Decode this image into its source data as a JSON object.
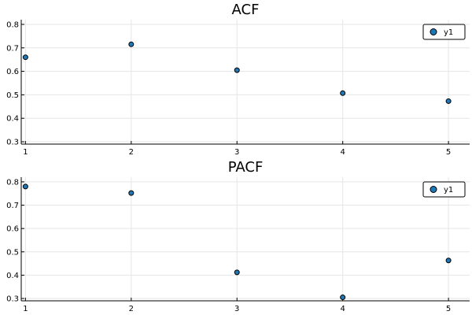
{
  "colors": {
    "marker_fill": "#1f77b4",
    "marker_stroke": "#000000",
    "grid": "#e6e6e6",
    "axis": "#000000",
    "background": "#ffffff"
  },
  "chart_data": [
    {
      "type": "scatter",
      "title": "ACF",
      "xlabel": "",
      "ylabel": "",
      "x": [
        1,
        2,
        3,
        4,
        5
      ],
      "series": [
        {
          "name": "y1",
          "values": [
            0.66,
            0.715,
            0.605,
            0.507,
            0.473
          ]
        }
      ],
      "xlim": [
        0.96,
        5.2
      ],
      "ylim": [
        0.29,
        0.82
      ],
      "xticks": [
        1,
        2,
        3,
        4,
        5
      ],
      "yticks": [
        0.3,
        0.4,
        0.5,
        0.6,
        0.7,
        0.8
      ],
      "grid": true,
      "legend": "top-right"
    },
    {
      "type": "scatter",
      "title": "PACF",
      "xlabel": "",
      "ylabel": "",
      "x": [
        1,
        2,
        3,
        4,
        5
      ],
      "series": [
        {
          "name": "y1",
          "values": [
            0.78,
            0.752,
            0.412,
            0.305,
            0.463
          ]
        }
      ],
      "xlim": [
        0.96,
        5.2
      ],
      "ylim": [
        0.29,
        0.82
      ],
      "xticks": [
        1,
        2,
        3,
        4,
        5
      ],
      "yticks": [
        0.3,
        0.4,
        0.5,
        0.6,
        0.7,
        0.8
      ],
      "grid": true,
      "legend": "top-right"
    }
  ]
}
